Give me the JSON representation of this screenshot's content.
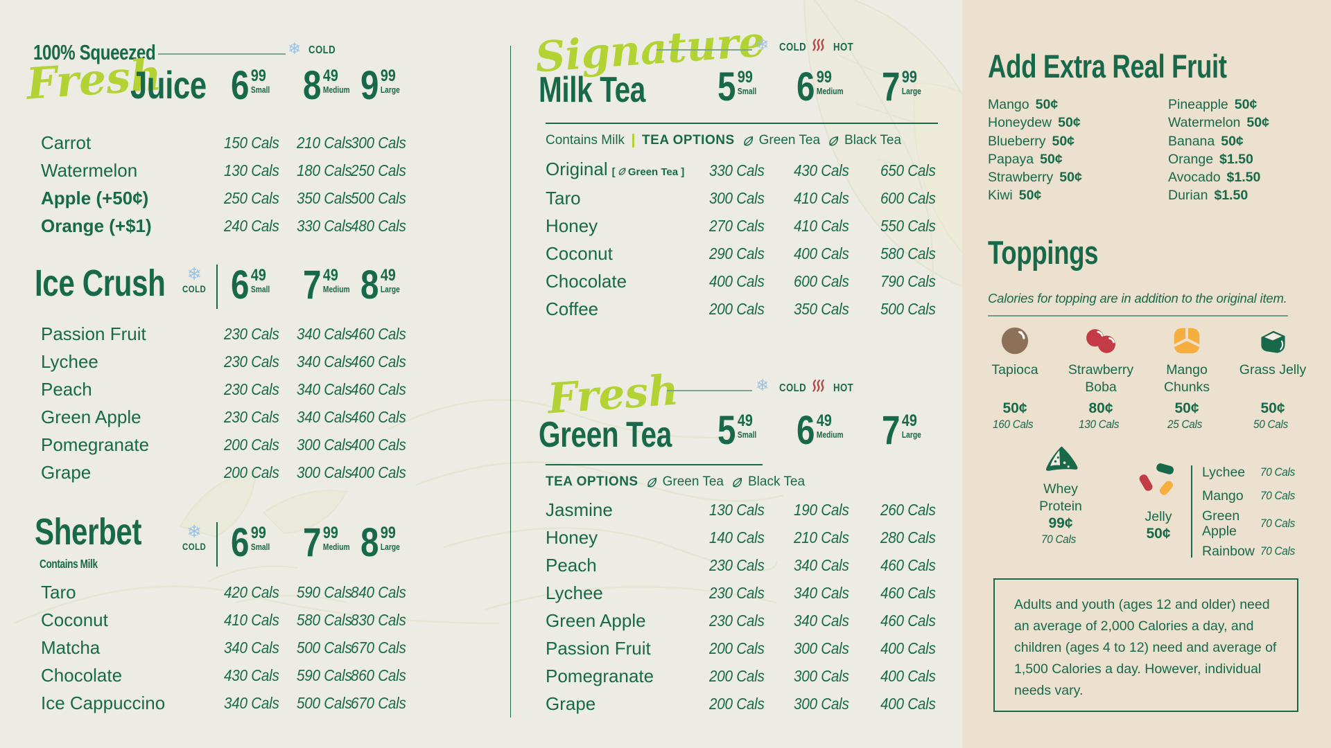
{
  "board": {
    "cold_label": "COLD",
    "hot_label": "HOT"
  },
  "sections": {
    "fresh_juice": {
      "eyebrow": "100% Squeezed",
      "script": "Fresh",
      "title": "Juice",
      "prices": [
        {
          "amount": "6",
          "cents": "99",
          "size": "Small"
        },
        {
          "amount": "8",
          "cents": "49",
          "size": "Medium"
        },
        {
          "amount": "9",
          "cents": "99",
          "size": "Large"
        }
      ],
      "items": [
        {
          "name": "Carrot",
          "cals": [
            "150 Cals",
            "210 Cals",
            "300 Cals"
          ]
        },
        {
          "name": "Watermelon",
          "cals": [
            "130 Cals",
            "180 Cals",
            "250 Cals"
          ]
        },
        {
          "name": "Apple (+50¢)",
          "bold": true,
          "cals": [
            "250 Cals",
            "350 Cals",
            "500 Cals"
          ]
        },
        {
          "name": "Orange (+$1)",
          "bold": true,
          "cals": [
            "240 Cals",
            "330 Cals",
            "480 Cals"
          ]
        }
      ]
    },
    "ice_crush": {
      "title": "Ice Crush",
      "prices": [
        {
          "amount": "6",
          "cents": "49",
          "size": "Small"
        },
        {
          "amount": "7",
          "cents": "49",
          "size": "Medium"
        },
        {
          "amount": "8",
          "cents": "49",
          "size": "Large"
        }
      ],
      "items": [
        {
          "name": "Passion Fruit",
          "cals": [
            "230 Cals",
            "340 Cals",
            "460 Cals"
          ]
        },
        {
          "name": "Lychee",
          "cals": [
            "230 Cals",
            "340 Cals",
            "460 Cals"
          ]
        },
        {
          "name": "Peach",
          "cals": [
            "230 Cals",
            "340 Cals",
            "460 Cals"
          ]
        },
        {
          "name": "Green Apple",
          "cals": [
            "230 Cals",
            "340 Cals",
            "460 Cals"
          ]
        },
        {
          "name": "Pomegranate",
          "cals": [
            "200 Cals",
            "300 Cals",
            "400 Cals"
          ]
        },
        {
          "name": "Grape",
          "cals": [
            "200 Cals",
            "300 Cals",
            "400 Cals"
          ]
        }
      ]
    },
    "sherbet": {
      "title": "Sherbet",
      "subtitle": "Contains Milk",
      "prices": [
        {
          "amount": "6",
          "cents": "99",
          "size": "Small"
        },
        {
          "amount": "7",
          "cents": "99",
          "size": "Medium"
        },
        {
          "amount": "8",
          "cents": "99",
          "size": "Large"
        }
      ],
      "items": [
        {
          "name": "Taro",
          "cals": [
            "420 Cals",
            "590 Cals",
            "840 Cals"
          ]
        },
        {
          "name": "Coconut",
          "cals": [
            "410 Cals",
            "580 Cals",
            "830 Cals"
          ]
        },
        {
          "name": "Matcha",
          "cals": [
            "340 Cals",
            "500 Cals",
            "670 Cals"
          ]
        },
        {
          "name": "Chocolate",
          "cals": [
            "430 Cals",
            "590 Cals",
            "860 Cals"
          ]
        },
        {
          "name": "Ice Cappuccino",
          "cals": [
            "340 Cals",
            "500 Cals",
            "670 Cals"
          ]
        }
      ]
    },
    "milk_tea": {
      "script": "Signature",
      "title": "Milk Tea",
      "contains": "Contains Milk",
      "tea_options_label": "TEA OPTIONS",
      "tea_options": [
        "Green Tea",
        "Black Tea"
      ],
      "prices": [
        {
          "amount": "5",
          "cents": "99",
          "size": "Small"
        },
        {
          "amount": "6",
          "cents": "99",
          "size": "Medium"
        },
        {
          "amount": "7",
          "cents": "99",
          "size": "Large"
        }
      ],
      "items": [
        {
          "name": "Original",
          "badge": "Green Tea",
          "cals": [
            "330 Cals",
            "430 Cals",
            "650 Cals"
          ]
        },
        {
          "name": "Taro",
          "cals": [
            "300 Cals",
            "410 Cals",
            "600 Cals"
          ]
        },
        {
          "name": "Honey",
          "cals": [
            "270 Cals",
            "410 Cals",
            "550 Cals"
          ]
        },
        {
          "name": "Coconut",
          "cals": [
            "290 Cals",
            "400 Cals",
            "580 Cals"
          ]
        },
        {
          "name": "Chocolate",
          "cals": [
            "400 Cals",
            "600 Cals",
            "790 Cals"
          ]
        },
        {
          "name": "Coffee",
          "cals": [
            "200 Cals",
            "350 Cals",
            "500 Cals"
          ]
        }
      ]
    },
    "green_tea": {
      "script": "Fresh",
      "title": "Green Tea",
      "tea_options_label": "TEA OPTIONS",
      "tea_options": [
        "Green Tea",
        "Black Tea"
      ],
      "prices": [
        {
          "amount": "5",
          "cents": "49",
          "size": "Small"
        },
        {
          "amount": "6",
          "cents": "49",
          "size": "Medium"
        },
        {
          "amount": "7",
          "cents": "49",
          "size": "Large"
        }
      ],
      "items": [
        {
          "name": "Jasmine",
          "cals": [
            "130 Cals",
            "190 Cals",
            "260 Cals"
          ]
        },
        {
          "name": "Honey",
          "cals": [
            "140 Cals",
            "210 Cals",
            "280 Cals"
          ]
        },
        {
          "name": "Peach",
          "cals": [
            "230 Cals",
            "340 Cals",
            "460 Cals"
          ]
        },
        {
          "name": "Lychee",
          "cals": [
            "230 Cals",
            "340 Cals",
            "460 Cals"
          ]
        },
        {
          "name": "Green Apple",
          "cals": [
            "230 Cals",
            "340 Cals",
            "460 Cals"
          ]
        },
        {
          "name": "Passion Fruit",
          "cals": [
            "200 Cals",
            "300 Cals",
            "400 Cals"
          ]
        },
        {
          "name": "Pomegranate",
          "cals": [
            "200 Cals",
            "300 Cals",
            "400 Cals"
          ]
        },
        {
          "name": "Grape",
          "cals": [
            "200 Cals",
            "300 Cals",
            "400 Cals"
          ]
        }
      ]
    }
  },
  "extras": {
    "title": "Add Extra Real Fruit",
    "col1": [
      [
        "Mango",
        "50¢"
      ],
      [
        "Honeydew",
        "50¢"
      ],
      [
        "Blueberry",
        "50¢"
      ],
      [
        "Papaya",
        "50¢"
      ],
      [
        "Strawberry",
        "50¢"
      ],
      [
        "Kiwi",
        "50¢"
      ]
    ],
    "col2": [
      [
        "Pineapple",
        "50¢"
      ],
      [
        "Watermelon",
        "50¢"
      ],
      [
        "Banana",
        "50¢"
      ],
      [
        "Orange",
        "$1.50"
      ],
      [
        "Avocado",
        "$1.50"
      ],
      [
        "Durian",
        "$1.50"
      ]
    ]
  },
  "toppings": {
    "title": "Toppings",
    "note": "Calories for topping are in addition to the original item.",
    "row1": [
      {
        "icon": "tapioca-icon",
        "name": "Tapioca",
        "price": "50¢",
        "cals": "160 Cals"
      },
      {
        "icon": "strawberry-boba-icon",
        "name": "Strawberry Boba",
        "price": "80¢",
        "cals": "130 Cals"
      },
      {
        "icon": "mango-chunks-icon",
        "name": "Mango Chunks",
        "price": "50¢",
        "cals": "25 Cals"
      },
      {
        "icon": "grass-jelly-icon",
        "name": "Grass Jelly",
        "price": "50¢",
        "cals": "50 Cals"
      }
    ],
    "whey": {
      "icon": "whey-protein-icon",
      "name": "Whey Protein",
      "price": "99¢",
      "cals": "70 Cals"
    },
    "jelly": {
      "icon": "jelly-icon",
      "name": "Jelly",
      "price": "50¢",
      "flavors": [
        [
          "Lychee",
          "70 Cals"
        ],
        [
          "Mango",
          "70 Cals"
        ],
        [
          "Green Apple",
          "70 Cals"
        ],
        [
          "Rainbow",
          "70 Cals"
        ]
      ]
    }
  },
  "disclaimer": "Adults and youth (ages 12 and older) need an average of 2,000 Calories a day, and children (ages 4 to 12) need and average of 1,500 Calories a day. However, individual needs vary.",
  "colors": {
    "green": "#17694A",
    "lime": "#B3D234",
    "blue": "#9DC2E4",
    "red": "#B04C4A",
    "bg": "#EDECE4",
    "panel": "#EBE1CE",
    "brown": "#8C7158",
    "berry": "#C33B46",
    "mango": "#F6AF3E"
  }
}
